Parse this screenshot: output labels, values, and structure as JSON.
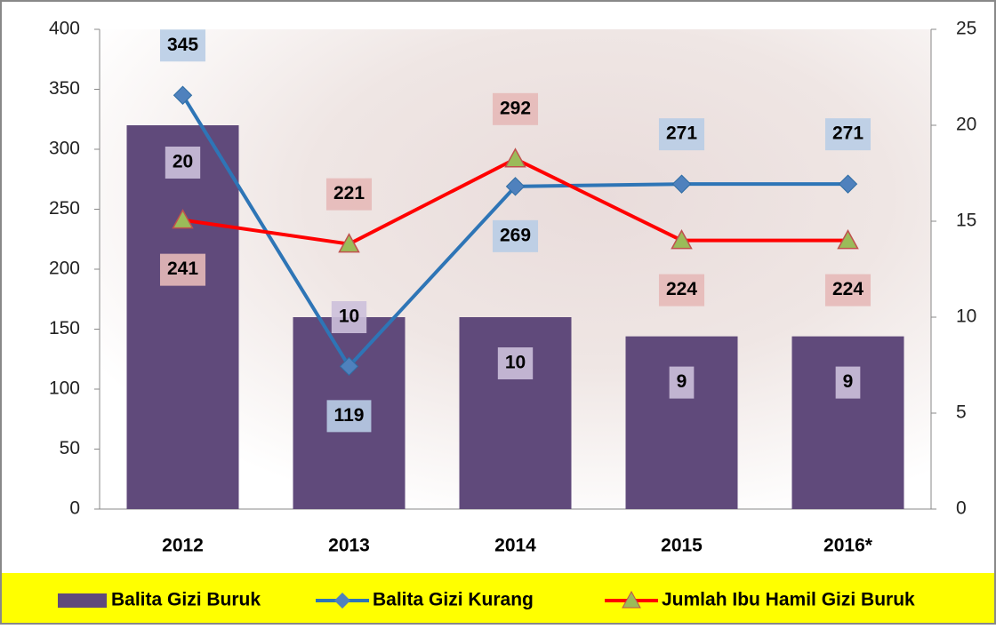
{
  "chart_data": {
    "type": "bar-line",
    "categories": [
      "2012",
      "2013",
      "2014",
      "2015",
      "2016*"
    ],
    "series": [
      {
        "name": "Balita Gizi Buruk",
        "type": "bar",
        "axis": "y2",
        "color": "#604a7b",
        "values": [
          20,
          10,
          10,
          9,
          9
        ]
      },
      {
        "name": "Balita Gizi Kurang",
        "type": "line",
        "color": "#2e75b6",
        "values": [
          345,
          119,
          269,
          271,
          271
        ]
      },
      {
        "name": "Jumlah Ibu Hamil Gizi Buruk",
        "type": "line",
        "color": "#ff0000",
        "values": [
          241,
          221,
          292,
          224,
          224
        ]
      }
    ],
    "ylim": [
      0,
      400
    ],
    "yticks": [
      0,
      50,
      100,
      150,
      200,
      250,
      300,
      350,
      400
    ],
    "y2lim": [
      0,
      25
    ],
    "y2ticks": [
      0,
      5,
      10,
      15,
      20,
      25
    ]
  }
}
